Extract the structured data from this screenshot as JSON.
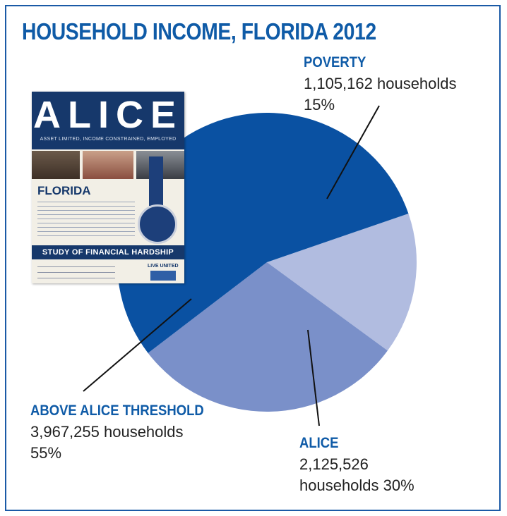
{
  "title": "HOUSEHOLD INCOME, FLORIDA 2012",
  "colors": {
    "frame": "#1a5aa6",
    "title": "#0f5ba7",
    "slice_above": "#0a51a2",
    "slice_alice": "#7a90c9",
    "slice_poverty": "#b1bce0"
  },
  "chart_data": {
    "type": "pie",
    "title": "HOUSEHOLD INCOME, FLORIDA 2012",
    "slices": [
      {
        "name": "POVERTY",
        "households": "1,105,162 households",
        "value": 1105162,
        "percent_label": "15%",
        "color": "#b1bce0"
      },
      {
        "name": "ALICE",
        "households": "2,125,526 households",
        "value": 2125526,
        "percent_label": "30%",
        "color": "#7a90c9"
      },
      {
        "name": "ABOVE ALICE THRESHOLD",
        "households": "3,967,255 households",
        "value": 3967255,
        "percent_label": "55%",
        "color": "#0a51a2"
      }
    ]
  },
  "labels": {
    "poverty": {
      "name": "POVERTY",
      "line1": "1,105,162 households",
      "line2": "15%"
    },
    "alice": {
      "name": "ALICE",
      "line1": "2,125,526",
      "line2": "households 30%"
    },
    "above": {
      "name": "ABOVE ALICE THRESHOLD",
      "line1": "3,967,255 households",
      "line2": "55%"
    }
  },
  "cover": {
    "title": "ALICE",
    "subtitle": "ASSET LIMITED, INCOME CONSTRAINED, EMPLOYED",
    "state": "FLORIDA",
    "band": "STUDY OF FINANCIAL HARDSHIP",
    "brand": "LIVE UNITED"
  }
}
